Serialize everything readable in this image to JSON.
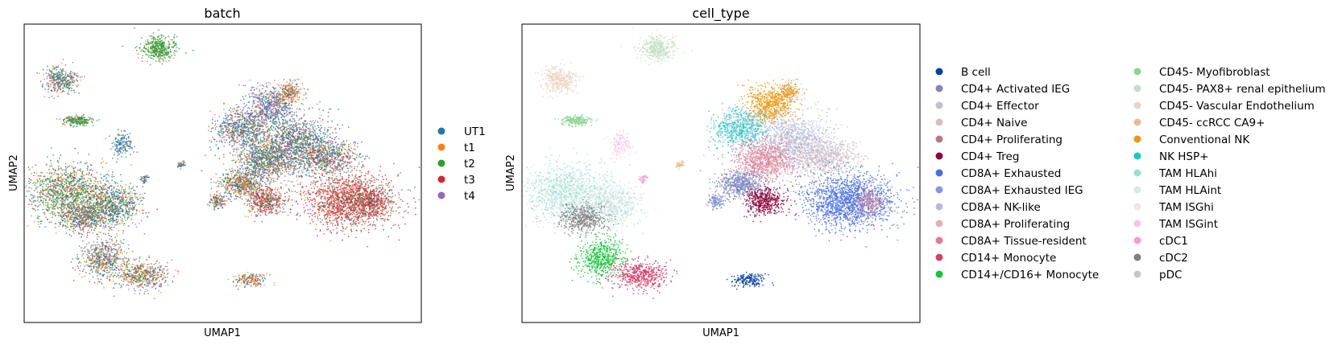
{
  "chart_data": [
    {
      "type": "scatter",
      "title": "batch",
      "xlabel": "UMAP1",
      "ylabel": "UMAP2",
      "ticks": "none",
      "legend_position": "right",
      "legend": [
        {
          "label": "UT1",
          "color": "#1f77b4"
        },
        {
          "label": "t1",
          "color": "#ff7f0e"
        },
        {
          "label": "t2",
          "color": "#2ca02c"
        },
        {
          "label": "t3",
          "color": "#d62728"
        },
        {
          "label": "t4",
          "color": "#9467bd"
        }
      ]
    },
    {
      "type": "scatter",
      "title": "cell_type",
      "xlabel": "UMAP1",
      "ylabel": "UMAP2",
      "ticks": "none",
      "legend_position": "right",
      "legend": [
        {
          "label": "B cell",
          "color": "#023fa5"
        },
        {
          "label": "CD4+ Activated IEG",
          "color": "#7d87b9"
        },
        {
          "label": "CD4+ Effector",
          "color": "#bec1d4"
        },
        {
          "label": "CD4+ Naive",
          "color": "#d6bcc0"
        },
        {
          "label": "CD4+ Proliferating",
          "color": "#bb7784"
        },
        {
          "label": "CD4+ Treg",
          "color": "#8e063b"
        },
        {
          "label": "CD8A+ Exhausted",
          "color": "#4a6fe3"
        },
        {
          "label": "CD8A+ Exhausted IEG",
          "color": "#8595e1"
        },
        {
          "label": "CD8A+ NK-like",
          "color": "#b5bbe3"
        },
        {
          "label": "CD8A+ Proliferating",
          "color": "#e6afb9"
        },
        {
          "label": "CD8A+ Tissue-resident",
          "color": "#e07b91"
        },
        {
          "label": "CD14+ Monocyte",
          "color": "#d33f6a"
        },
        {
          "label": "CD14+/CD16+ Monocyte",
          "color": "#11c638"
        },
        {
          "label": "CD45- Myofibroblast",
          "color": "#8dd593"
        },
        {
          "label": "CD45- PAX8+ renal epithelium",
          "color": "#c6dec7"
        },
        {
          "label": "CD45- Vascular Endothelium",
          "color": "#ead3c6"
        },
        {
          "label": "CD45- ccRCC CA9+",
          "color": "#f0b98d"
        },
        {
          "label": "Conventional NK",
          "color": "#ef9708"
        },
        {
          "label": "NK HSP+",
          "color": "#0fcfc0"
        },
        {
          "label": "TAM HLAhi",
          "color": "#9cded6"
        },
        {
          "label": "TAM HLAint",
          "color": "#d5eae7"
        },
        {
          "label": "TAM ISGhi",
          "color": "#f3e1eb"
        },
        {
          "label": "TAM ISGint",
          "color": "#f6c4e1"
        },
        {
          "label": "cDC1",
          "color": "#f79cd4"
        },
        {
          "label": "cDC2",
          "color": "#7f7f7f"
        },
        {
          "label": "pDC",
          "color": "#c7c7c7"
        }
      ]
    }
  ]
}
